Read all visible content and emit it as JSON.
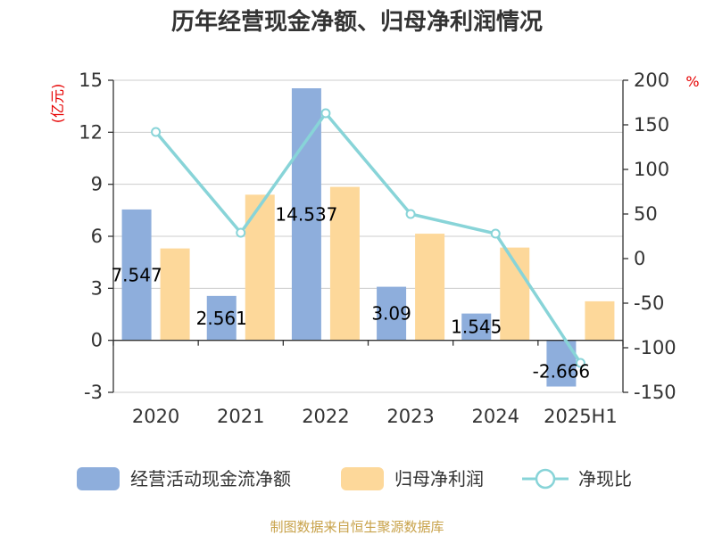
{
  "chart_data": {
    "type": "bar",
    "title": "历年经营现金净额、归母净利润情况",
    "categories": [
      "2020",
      "2021",
      "2022",
      "2023",
      "2024",
      "2025H1"
    ],
    "y_left": {
      "unit": "(亿元)",
      "ticks": [
        "15",
        "12",
        "9",
        "6",
        "3",
        "0",
        "-3"
      ],
      "ylim": [
        -3,
        15
      ]
    },
    "y_right": {
      "unit": "%",
      "ticks": [
        "200",
        "150",
        "100",
        "50",
        "0",
        "-50",
        "-100",
        "-150"
      ],
      "ylim": [
        -150,
        200
      ]
    },
    "series": [
      {
        "name": "经营活动现金流净额",
        "type": "bar",
        "axis": "left",
        "color": "#8eaedc",
        "values": [
          7.547,
          2.561,
          14.537,
          3.09,
          1.545,
          -2.666
        ],
        "labels": [
          "7.547",
          "2.561",
          "14.537",
          "3.09",
          "1.545",
          "-2.666"
        ]
      },
      {
        "name": "归母净利润",
        "type": "bar",
        "axis": "left",
        "color": "#fdd89a",
        "values": [
          5.3,
          8.4,
          8.85,
          6.15,
          5.35,
          2.25
        ]
      },
      {
        "name": "净现比",
        "type": "line",
        "axis": "right",
        "color": "#88d4d8",
        "values": [
          142,
          29,
          163,
          50,
          28,
          -117
        ]
      }
    ],
    "grid": true,
    "legend_position": "bottom"
  },
  "footer": {
    "source": "制图数据来自恒生聚源数据库"
  }
}
